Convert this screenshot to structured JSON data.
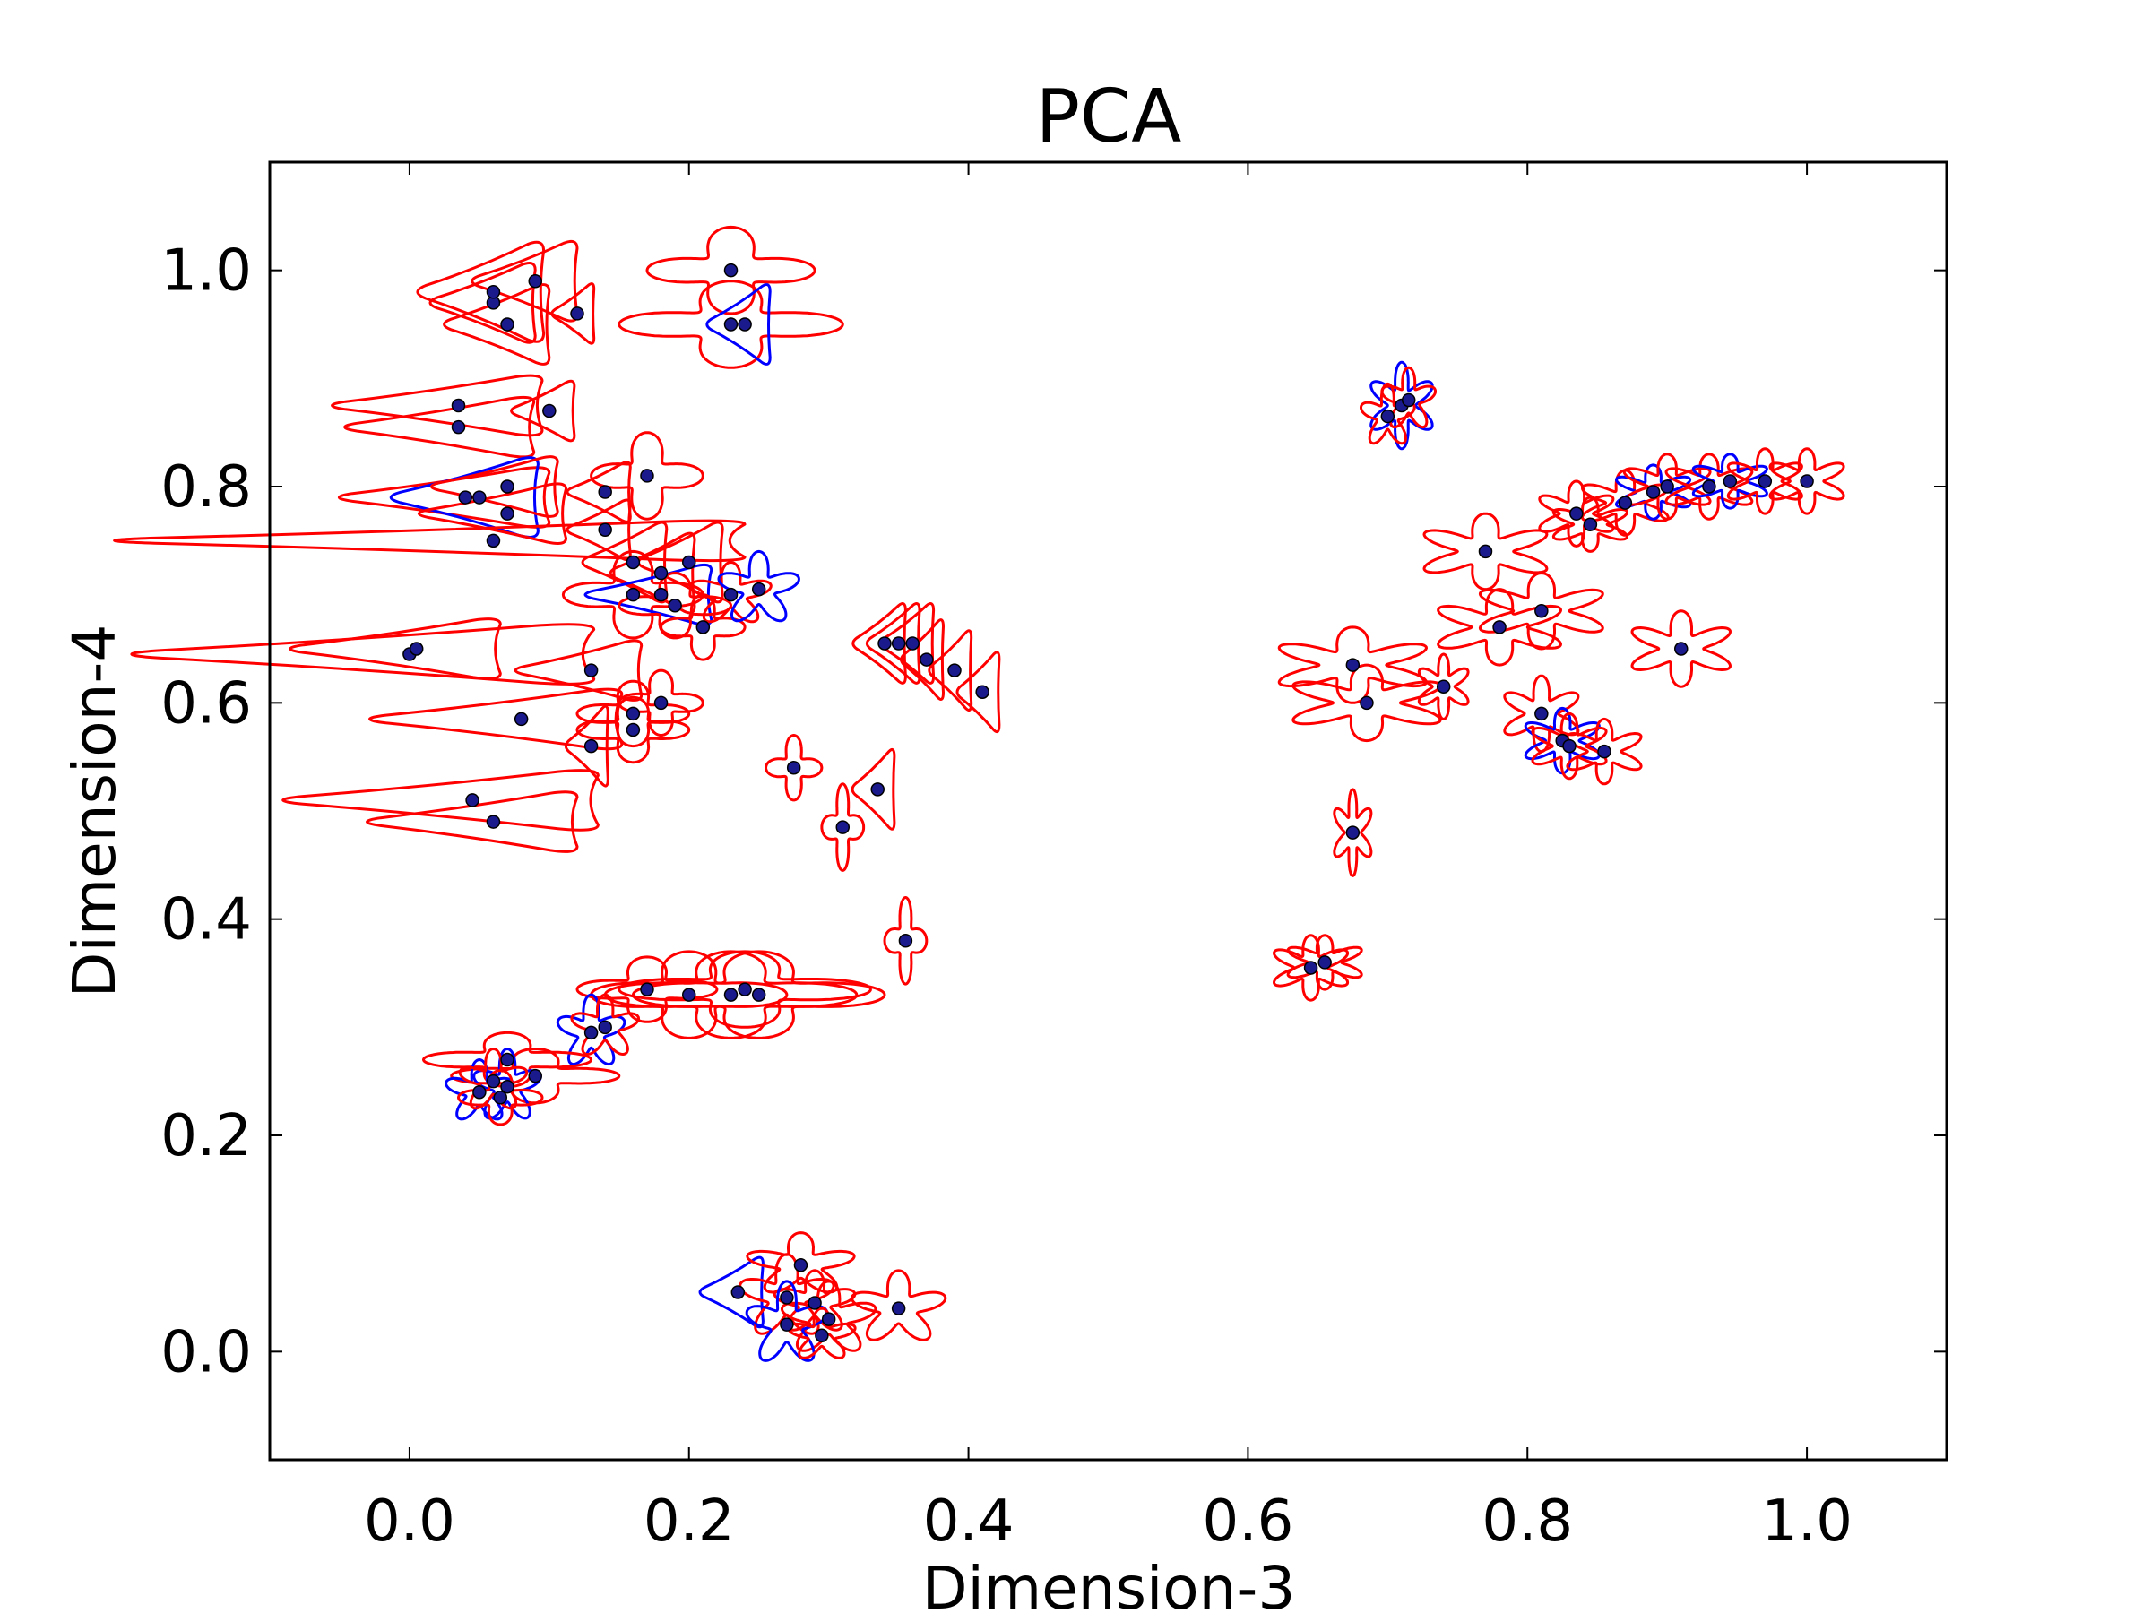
{
  "chart_data": {
    "type": "scatter",
    "title": "PCA",
    "xlabel": "Dimension-3",
    "ylabel": "Dimension-4",
    "xlim": [
      -0.1,
      1.1
    ],
    "ylim": [
      -0.1,
      1.1
    ],
    "xticks": [
      "0.0",
      "0.2",
      "0.4",
      "0.6",
      "0.8",
      "1.0"
    ],
    "yticks": [
      "0.0",
      "0.2",
      "0.4",
      "0.6",
      "0.8",
      "1.0"
    ],
    "grid": false,
    "colors": {
      "point": "#1a1a8c",
      "glyph_primary": "#ff0000",
      "glyph_secondary": "#0000ff"
    },
    "points": [
      {
        "x": 0.06,
        "y": 0.97,
        "shape": "triangle",
        "w": 0.05,
        "h": 0.04,
        "color": "red"
      },
      {
        "x": 0.06,
        "y": 0.98,
        "shape": "triangle",
        "w": 0.06,
        "h": 0.05,
        "color": "red"
      },
      {
        "x": 0.07,
        "y": 0.95,
        "shape": "triangle",
        "w": 0.05,
        "h": 0.04,
        "color": "red"
      },
      {
        "x": 0.09,
        "y": 0.99,
        "shape": "triangle",
        "w": 0.05,
        "h": 0.04,
        "color": "red"
      },
      {
        "x": 0.12,
        "y": 0.96,
        "shape": "triangle",
        "w": 0.02,
        "h": 0.03,
        "color": "red"
      },
      {
        "x": 0.23,
        "y": 1.0,
        "shape": "star4",
        "w": 0.06,
        "h": 0.04,
        "color": "red"
      },
      {
        "x": 0.23,
        "y": 0.95,
        "shape": "star4",
        "w": 0.08,
        "h": 0.04,
        "color": "red"
      },
      {
        "x": 0.24,
        "y": 0.95,
        "shape": "triangle",
        "w": 0.03,
        "h": 0.04,
        "color": "blue"
      },
      {
        "x": 0.035,
        "y": 0.875,
        "shape": "triangle",
        "w": 0.1,
        "h": 0.03,
        "color": "red"
      },
      {
        "x": 0.035,
        "y": 0.855,
        "shape": "triangle",
        "w": 0.09,
        "h": 0.03,
        "color": "red"
      },
      {
        "x": 0.1,
        "y": 0.87,
        "shape": "triangle",
        "w": 0.03,
        "h": 0.03,
        "color": "red"
      },
      {
        "x": 0.04,
        "y": 0.79,
        "shape": "triangle",
        "w": 0.1,
        "h": 0.03,
        "color": "red"
      },
      {
        "x": 0.05,
        "y": 0.79,
        "shape": "triangle",
        "w": 0.07,
        "h": 0.04,
        "color": "blue"
      },
      {
        "x": 0.07,
        "y": 0.8,
        "shape": "triangle",
        "w": 0.06,
        "h": 0.03,
        "color": "red"
      },
      {
        "x": 0.06,
        "y": 0.75,
        "shape": "triangle",
        "w": 0.3,
        "h": 0.02,
        "color": "red"
      },
      {
        "x": 0.07,
        "y": 0.775,
        "shape": "triangle",
        "w": 0.07,
        "h": 0.03,
        "color": "red"
      },
      {
        "x": 0.14,
        "y": 0.795,
        "shape": "triangle",
        "w": 0.03,
        "h": 0.03,
        "color": "red"
      },
      {
        "x": 0.17,
        "y": 0.81,
        "shape": "star4",
        "w": 0.04,
        "h": 0.04,
        "color": "red"
      },
      {
        "x": 0.14,
        "y": 0.76,
        "shape": "triangle",
        "w": 0.03,
        "h": 0.03,
        "color": "red"
      },
      {
        "x": 0.16,
        "y": 0.73,
        "shape": "triangle",
        "w": 0.04,
        "h": 0.04,
        "color": "red"
      },
      {
        "x": 0.18,
        "y": 0.72,
        "shape": "triangle",
        "w": 0.04,
        "h": 0.04,
        "color": "red"
      },
      {
        "x": 0.2,
        "y": 0.73,
        "shape": "triangle",
        "w": 0.04,
        "h": 0.04,
        "color": "red"
      },
      {
        "x": 0.16,
        "y": 0.7,
        "shape": "star4",
        "w": 0.05,
        "h": 0.04,
        "color": "red"
      },
      {
        "x": 0.18,
        "y": 0.7,
        "shape": "triangle",
        "w": 0.06,
        "h": 0.03,
        "color": "blue"
      },
      {
        "x": 0.19,
        "y": 0.69,
        "shape": "star4",
        "w": 0.04,
        "h": 0.03,
        "color": "red"
      },
      {
        "x": 0.21,
        "y": 0.67,
        "shape": "star4",
        "w": 0.03,
        "h": 0.03,
        "color": "red"
      },
      {
        "x": 0.23,
        "y": 0.7,
        "shape": "star5",
        "w": 0.03,
        "h": 0.03,
        "color": "red"
      },
      {
        "x": 0.25,
        "y": 0.705,
        "shape": "star5",
        "w": 0.03,
        "h": 0.035,
        "color": "blue"
      },
      {
        "x": 0.0,
        "y": 0.645,
        "shape": "triangle",
        "w": 0.22,
        "h": 0.03,
        "color": "red"
      },
      {
        "x": 0.005,
        "y": 0.65,
        "shape": "triangle",
        "w": 0.1,
        "h": 0.03,
        "color": "red"
      },
      {
        "x": 0.08,
        "y": 0.585,
        "shape": "triangle",
        "w": 0.12,
        "h": 0.03,
        "color": "red"
      },
      {
        "x": 0.13,
        "y": 0.63,
        "shape": "triangle",
        "w": 0.06,
        "h": 0.03,
        "color": "red"
      },
      {
        "x": 0.13,
        "y": 0.56,
        "shape": "triangle",
        "w": 0.02,
        "h": 0.04,
        "color": "red"
      },
      {
        "x": 0.16,
        "y": 0.59,
        "shape": "star4",
        "w": 0.04,
        "h": 0.03,
        "color": "red"
      },
      {
        "x": 0.18,
        "y": 0.6,
        "shape": "star4",
        "w": 0.03,
        "h": 0.03,
        "color": "red"
      },
      {
        "x": 0.16,
        "y": 0.575,
        "shape": "star4",
        "w": 0.04,
        "h": 0.03,
        "color": "red"
      },
      {
        "x": 0.045,
        "y": 0.51,
        "shape": "triangle",
        "w": 0.15,
        "h": 0.03,
        "color": "red"
      },
      {
        "x": 0.06,
        "y": 0.49,
        "shape": "triangle",
        "w": 0.1,
        "h": 0.03,
        "color": "red"
      },
      {
        "x": 0.34,
        "y": 0.655,
        "shape": "triangle",
        "w": 0.025,
        "h": 0.04,
        "color": "red"
      },
      {
        "x": 0.35,
        "y": 0.655,
        "shape": "triangle",
        "w": 0.025,
        "h": 0.04,
        "color": "red"
      },
      {
        "x": 0.36,
        "y": 0.655,
        "shape": "triangle",
        "w": 0.025,
        "h": 0.04,
        "color": "red"
      },
      {
        "x": 0.37,
        "y": 0.64,
        "shape": "triangle",
        "w": 0.02,
        "h": 0.04,
        "color": "red"
      },
      {
        "x": 0.39,
        "y": 0.63,
        "shape": "triangle",
        "w": 0.02,
        "h": 0.04,
        "color": "red"
      },
      {
        "x": 0.41,
        "y": 0.61,
        "shape": "triangle",
        "w": 0.02,
        "h": 0.04,
        "color": "red"
      },
      {
        "x": 0.275,
        "y": 0.54,
        "shape": "star4",
        "w": 0.02,
        "h": 0.03,
        "color": "red"
      },
      {
        "x": 0.31,
        "y": 0.485,
        "shape": "star4",
        "w": 0.015,
        "h": 0.04,
        "color": "red"
      },
      {
        "x": 0.335,
        "y": 0.52,
        "shape": "triangle",
        "w": 0.02,
        "h": 0.04,
        "color": "red"
      },
      {
        "x": 0.355,
        "y": 0.38,
        "shape": "star4",
        "w": 0.015,
        "h": 0.04,
        "color": "red"
      },
      {
        "x": 0.17,
        "y": 0.335,
        "shape": "star4",
        "w": 0.05,
        "h": 0.03,
        "color": "red"
      },
      {
        "x": 0.2,
        "y": 0.33,
        "shape": "star4",
        "w": 0.07,
        "h": 0.04,
        "color": "red"
      },
      {
        "x": 0.23,
        "y": 0.33,
        "shape": "star4",
        "w": 0.09,
        "h": 0.04,
        "color": "red"
      },
      {
        "x": 0.24,
        "y": 0.335,
        "shape": "star4",
        "w": 0.09,
        "h": 0.035,
        "color": "red"
      },
      {
        "x": 0.25,
        "y": 0.33,
        "shape": "star4",
        "w": 0.09,
        "h": 0.04,
        "color": "red"
      },
      {
        "x": 0.13,
        "y": 0.295,
        "shape": "star5",
        "w": 0.025,
        "h": 0.035,
        "color": "blue"
      },
      {
        "x": 0.14,
        "y": 0.3,
        "shape": "star5",
        "w": 0.025,
        "h": 0.03,
        "color": "red"
      },
      {
        "x": 0.07,
        "y": 0.27,
        "shape": "star4",
        "w": 0.06,
        "h": 0.025,
        "color": "red"
      },
      {
        "x": 0.09,
        "y": 0.255,
        "shape": "star4",
        "w": 0.06,
        "h": 0.025,
        "color": "red"
      },
      {
        "x": 0.05,
        "y": 0.24,
        "shape": "star5",
        "w": 0.025,
        "h": 0.03,
        "color": "blue"
      },
      {
        "x": 0.07,
        "y": 0.245,
        "shape": "star5",
        "w": 0.025,
        "h": 0.035,
        "color": "blue"
      },
      {
        "x": 0.06,
        "y": 0.25,
        "shape": "star5",
        "w": 0.025,
        "h": 0.03,
        "color": "red"
      },
      {
        "x": 0.065,
        "y": 0.235,
        "shape": "star4",
        "w": 0.03,
        "h": 0.025,
        "color": "red"
      },
      {
        "x": 0.235,
        "y": 0.055,
        "shape": "triangle",
        "w": 0.03,
        "h": 0.035,
        "color": "blue"
      },
      {
        "x": 0.27,
        "y": 0.05,
        "shape": "star5",
        "w": 0.035,
        "h": 0.04,
        "color": "red"
      },
      {
        "x": 0.28,
        "y": 0.08,
        "shape": "star5",
        "w": 0.04,
        "h": 0.03,
        "color": "red"
      },
      {
        "x": 0.3,
        "y": 0.03,
        "shape": "star5",
        "w": 0.035,
        "h": 0.035,
        "color": "red"
      },
      {
        "x": 0.35,
        "y": 0.04,
        "shape": "star5",
        "w": 0.035,
        "h": 0.035,
        "color": "red"
      },
      {
        "x": 0.29,
        "y": 0.045,
        "shape": "star5",
        "w": 0.03,
        "h": 0.03,
        "color": "red"
      },
      {
        "x": 0.27,
        "y": 0.025,
        "shape": "star5",
        "w": 0.03,
        "h": 0.04,
        "color": "blue"
      },
      {
        "x": 0.295,
        "y": 0.015,
        "shape": "star5",
        "w": 0.025,
        "h": 0.025,
        "color": "red"
      },
      {
        "x": 0.71,
        "y": 0.875,
        "shape": "star6",
        "w": 0.025,
        "h": 0.04,
        "color": "blue"
      },
      {
        "x": 0.7,
        "y": 0.865,
        "shape": "star5",
        "w": 0.02,
        "h": 0.03,
        "color": "red"
      },
      {
        "x": 0.715,
        "y": 0.88,
        "shape": "star5",
        "w": 0.02,
        "h": 0.03,
        "color": "red"
      },
      {
        "x": 0.77,
        "y": 0.74,
        "shape": "star6",
        "w": 0.05,
        "h": 0.035,
        "color": "red"
      },
      {
        "x": 0.81,
        "y": 0.685,
        "shape": "star6",
        "w": 0.05,
        "h": 0.035,
        "color": "red"
      },
      {
        "x": 0.78,
        "y": 0.67,
        "shape": "star6",
        "w": 0.05,
        "h": 0.035,
        "color": "red"
      },
      {
        "x": 0.835,
        "y": 0.775,
        "shape": "star6",
        "w": 0.03,
        "h": 0.03,
        "color": "red"
      },
      {
        "x": 0.845,
        "y": 0.765,
        "shape": "star6",
        "w": 0.03,
        "h": 0.025,
        "color": "red"
      },
      {
        "x": 0.87,
        "y": 0.785,
        "shape": "star6",
        "w": 0.035,
        "h": 0.03,
        "color": "red"
      },
      {
        "x": 0.89,
        "y": 0.795,
        "shape": "star6",
        "w": 0.03,
        "h": 0.025,
        "color": "blue"
      },
      {
        "x": 0.9,
        "y": 0.8,
        "shape": "star6",
        "w": 0.035,
        "h": 0.03,
        "color": "red"
      },
      {
        "x": 0.93,
        "y": 0.8,
        "shape": "star6",
        "w": 0.035,
        "h": 0.03,
        "color": "red"
      },
      {
        "x": 0.945,
        "y": 0.805,
        "shape": "star6",
        "w": 0.03,
        "h": 0.025,
        "color": "blue"
      },
      {
        "x": 0.97,
        "y": 0.805,
        "shape": "star6",
        "w": 0.03,
        "h": 0.03,
        "color": "red"
      },
      {
        "x": 1.0,
        "y": 0.805,
        "shape": "star6",
        "w": 0.03,
        "h": 0.03,
        "color": "red"
      },
      {
        "x": 0.91,
        "y": 0.65,
        "shape": "star6",
        "w": 0.04,
        "h": 0.035,
        "color": "red"
      },
      {
        "x": 0.675,
        "y": 0.635,
        "shape": "star6",
        "w": 0.06,
        "h": 0.035,
        "color": "red"
      },
      {
        "x": 0.685,
        "y": 0.6,
        "shape": "star6",
        "w": 0.06,
        "h": 0.035,
        "color": "red"
      },
      {
        "x": 0.74,
        "y": 0.615,
        "shape": "star6",
        "w": 0.02,
        "h": 0.03,
        "color": "red"
      },
      {
        "x": 0.81,
        "y": 0.59,
        "shape": "star6",
        "w": 0.03,
        "h": 0.035,
        "color": "red"
      },
      {
        "x": 0.825,
        "y": 0.565,
        "shape": "star6",
        "w": 0.03,
        "h": 0.03,
        "color": "blue"
      },
      {
        "x": 0.83,
        "y": 0.56,
        "shape": "star6",
        "w": 0.03,
        "h": 0.03,
        "color": "red"
      },
      {
        "x": 0.855,
        "y": 0.555,
        "shape": "star6",
        "w": 0.03,
        "h": 0.03,
        "color": "red"
      },
      {
        "x": 0.675,
        "y": 0.48,
        "shape": "star6",
        "w": 0.015,
        "h": 0.04,
        "color": "red"
      },
      {
        "x": 0.645,
        "y": 0.355,
        "shape": "star6",
        "w": 0.03,
        "h": 0.03,
        "color": "red"
      },
      {
        "x": 0.655,
        "y": 0.36,
        "shape": "star6",
        "w": 0.03,
        "h": 0.025,
        "color": "red"
      }
    ]
  }
}
